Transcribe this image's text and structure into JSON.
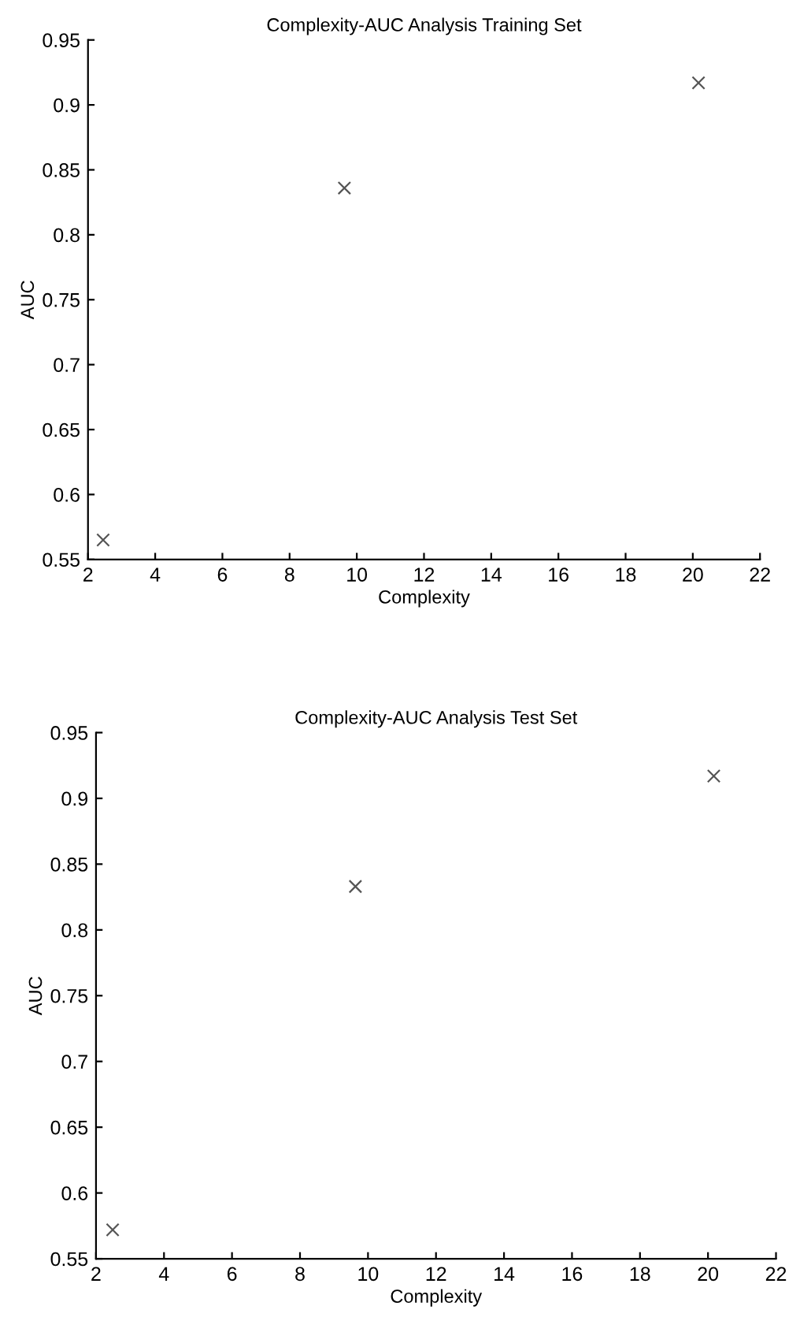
{
  "chart_data": [
    {
      "type": "scatter",
      "title": "Complexity-AUC Analysis Training Set",
      "xlabel": "Complexity",
      "ylabel": "AUC",
      "x": [
        2.45,
        9.63,
        20.17
      ],
      "values": [
        0.565,
        0.836,
        0.917
      ],
      "color": "#555555",
      "marker": "cross",
      "xlim": [
        2,
        22
      ],
      "xticks": [
        2,
        4,
        6,
        8,
        10,
        12,
        14,
        16,
        18,
        20,
        22
      ],
      "ylim": [
        0.55,
        0.95
      ],
      "yticks": [
        0.55,
        0.6,
        0.65,
        0.7,
        0.75,
        0.8,
        0.85,
        0.9,
        0.95
      ],
      "grid": false,
      "legend": false
    },
    {
      "type": "scatter",
      "title": "Complexity-AUC Analysis Test Set",
      "xlabel": "Complexity",
      "ylabel": "AUC",
      "x": [
        2.49,
        9.63,
        20.17
      ],
      "values": [
        0.572,
        0.833,
        0.917
      ],
      "color": "#555555",
      "marker": "cross",
      "xlim": [
        2,
        22
      ],
      "xticks": [
        2,
        4,
        6,
        8,
        10,
        12,
        14,
        16,
        18,
        20,
        22
      ],
      "ylim": [
        0.55,
        0.95
      ],
      "yticks": [
        0.55,
        0.6,
        0.65,
        0.7,
        0.75,
        0.8,
        0.85,
        0.9,
        0.95
      ],
      "grid": false,
      "legend": false
    }
  ]
}
